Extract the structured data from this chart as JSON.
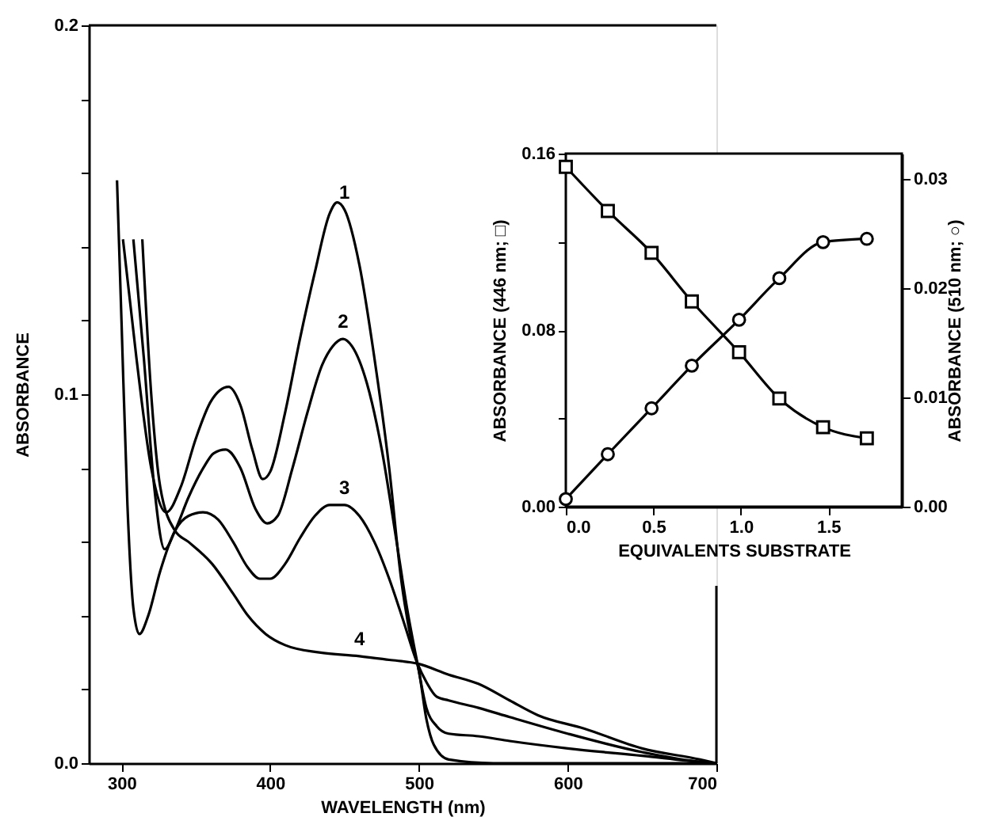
{
  "chart_data": [
    {
      "type": "line",
      "xlabel": "WAVELENGTH   (nm)",
      "ylabel": "ABSORBANCE",
      "xlim": [
        278,
        700
      ],
      "ylim": [
        0,
        0.2
      ],
      "xticks": [
        300,
        400,
        500,
        600,
        700
      ],
      "yticks": [
        {
          "value": 0,
          "label": "0.0"
        },
        {
          "value": 0.02,
          "label": null
        },
        {
          "value": 0.04,
          "label": null
        },
        {
          "value": 0.06,
          "label": null
        },
        {
          "value": 0.08,
          "label": null
        },
        0.1,
        {
          "value": 0.12,
          "label": null
        },
        {
          "value": 0.14,
          "label": null
        },
        {
          "value": 0.16,
          "label": null
        },
        {
          "value": 0.18,
          "label": null
        },
        0.2
      ],
      "grid": false,
      "legend": false,
      "marker": "none",
      "line_style": "solid",
      "series": [
        {
          "name": "1",
          "color": "#000000",
          "x": [
            301,
            310,
            320,
            330,
            340,
            350,
            360,
            372,
            380,
            388,
            395,
            400,
            410,
            420,
            430,
            440,
            445,
            450,
            460,
            470,
            480,
            488,
            495,
            500,
            505,
            510,
            520,
            550,
            600,
            700
          ],
          "values": [
            0.142,
            0.11,
            0.08,
            0.068,
            0.075,
            0.088,
            0.098,
            0.102,
            0.097,
            0.085,
            0.077,
            0.079,
            0.095,
            0.115,
            0.133,
            0.149,
            0.152,
            0.15,
            0.135,
            0.11,
            0.08,
            0.05,
            0.033,
            0.025,
            0.012,
            0.005,
            0.001,
            0,
            0,
            0
          ]
        },
        {
          "name": "2",
          "color": "#000000",
          "x": [
            308,
            315,
            322,
            329,
            336,
            345,
            355,
            362,
            370,
            380,
            390,
            398,
            405,
            415,
            425,
            435,
            442,
            449,
            455,
            465,
            475,
            485,
            492,
            499,
            505,
            512,
            520,
            540,
            561,
            600,
            650,
            690,
            700
          ],
          "values": [
            0.142,
            0.11,
            0.075,
            0.058,
            0.063,
            0.072,
            0.08,
            0.084,
            0.085,
            0.08,
            0.069,
            0.065,
            0.067,
            0.08,
            0.095,
            0.108,
            0.113,
            0.115,
            0.113,
            0.103,
            0.085,
            0.06,
            0.042,
            0.027,
            0.015,
            0.01,
            0.008,
            0.0073,
            0.006,
            0.004,
            0.002,
            0.0003,
            0
          ]
        },
        {
          "name": "3",
          "color": "#000000",
          "x": [
            297,
            300,
            304,
            308,
            312,
            318,
            326,
            336,
            345,
            355,
            365,
            375,
            385,
            393,
            400,
            410,
            420,
            430,
            440,
            450,
            460,
            470,
            480,
            490,
            499,
            505,
            512,
            520,
            540,
            561,
            600,
            650,
            690,
            700
          ],
          "values": [
            0.158,
            0.12,
            0.07,
            0.042,
            0.035,
            0.04,
            0.052,
            0.063,
            0.067,
            0.068,
            0.066,
            0.06,
            0.053,
            0.05,
            0.05,
            0.054,
            0.061,
            0.067,
            0.07,
            0.07,
            0.067,
            0.06,
            0.05,
            0.038,
            0.027,
            0.022,
            0.018,
            0.017,
            0.015,
            0.0125,
            0.008,
            0.003,
            0.0003,
            0
          ]
        },
        {
          "name": "4",
          "color": "#000000",
          "x": [
            314,
            320,
            326,
            336,
            345,
            361,
            375,
            385,
            397,
            410,
            433,
            460,
            480,
            499,
            520,
            540,
            561,
            580,
            611,
            650,
            689,
            700
          ],
          "values": [
            0.142,
            0.1,
            0.075,
            0.063,
            0.06,
            0.054,
            0.046,
            0.04,
            0.035,
            0.032,
            0.03,
            0.029,
            0.028,
            0.027,
            0.024,
            0.0215,
            0.017,
            0.013,
            0.0094,
            0.004,
            0.001,
            0
          ]
        }
      ]
    },
    {
      "type": "line",
      "xlabel": "EQUIVALENTS SUBSTRATE",
      "ylabel": "ABSORBANCE  (446 nm; □)",
      "y2label": "ABSORBANCE  (510 nm; ○)",
      "xlim": [
        0,
        1.92
      ],
      "xticks": [
        {
          "value": 0,
          "label": "0.0"
        },
        0.5,
        {
          "value": 1,
          "label": "1.0"
        },
        1.5
      ],
      "ylim": [
        0,
        0.16
      ],
      "yticks": [
        {
          "value": 0,
          "label": "0.00"
        },
        {
          "value": 0.04,
          "label": null
        },
        0.08,
        {
          "value": 0.12,
          "label": null
        },
        0.16
      ],
      "y2lim": [
        0,
        0.0323
      ],
      "y2ticks": [
        {
          "value": 0,
          "label": "0.00"
        },
        0.01,
        0.02,
        0.03
      ],
      "grid": false,
      "legend": false,
      "line_style": "solid",
      "series": [
        {
          "color": "#000000",
          "marker": "square",
          "x": [
            0,
            0.24,
            0.49,
            0.72,
            0.99,
            1.22,
            1.47,
            1.72
          ],
          "values": [
            0.154,
            0.134,
            0.115,
            0.093,
            0.07,
            0.049,
            0.036,
            0.031
          ]
        },
        {
          "color": "#000000",
          "marker": "circle",
          "axis": "y2",
          "x": [
            0,
            0.24,
            0.49,
            0.72,
            0.99,
            1.22,
            1.47,
            1.72
          ],
          "values": [
            0.0007,
            0.0048,
            0.009,
            0.0129,
            0.0171,
            0.0209,
            0.0242,
            0.0245
          ]
        }
      ]
    }
  ]
}
